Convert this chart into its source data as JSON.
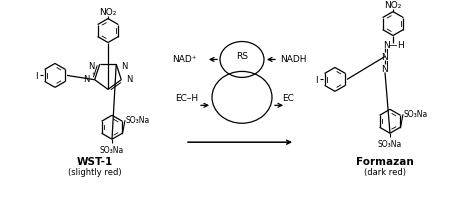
{
  "bg_color": "#ffffff",
  "fig_width": 4.7,
  "fig_height": 2.01,
  "dpi": 100,
  "wst1_label": "WST-1",
  "wst1_sublabel": "(slightly red)",
  "formazan_label": "Formazan",
  "formazan_sublabel": "(dark red)",
  "rs_label": "RS",
  "nadplus_label": "NAD⁺",
  "nadh_label": "NADH",
  "ech_label": "EC–H",
  "ec_label": "EC",
  "text_color": "#000000",
  "line_color": "#000000",
  "font_family": "DejaVu Sans"
}
